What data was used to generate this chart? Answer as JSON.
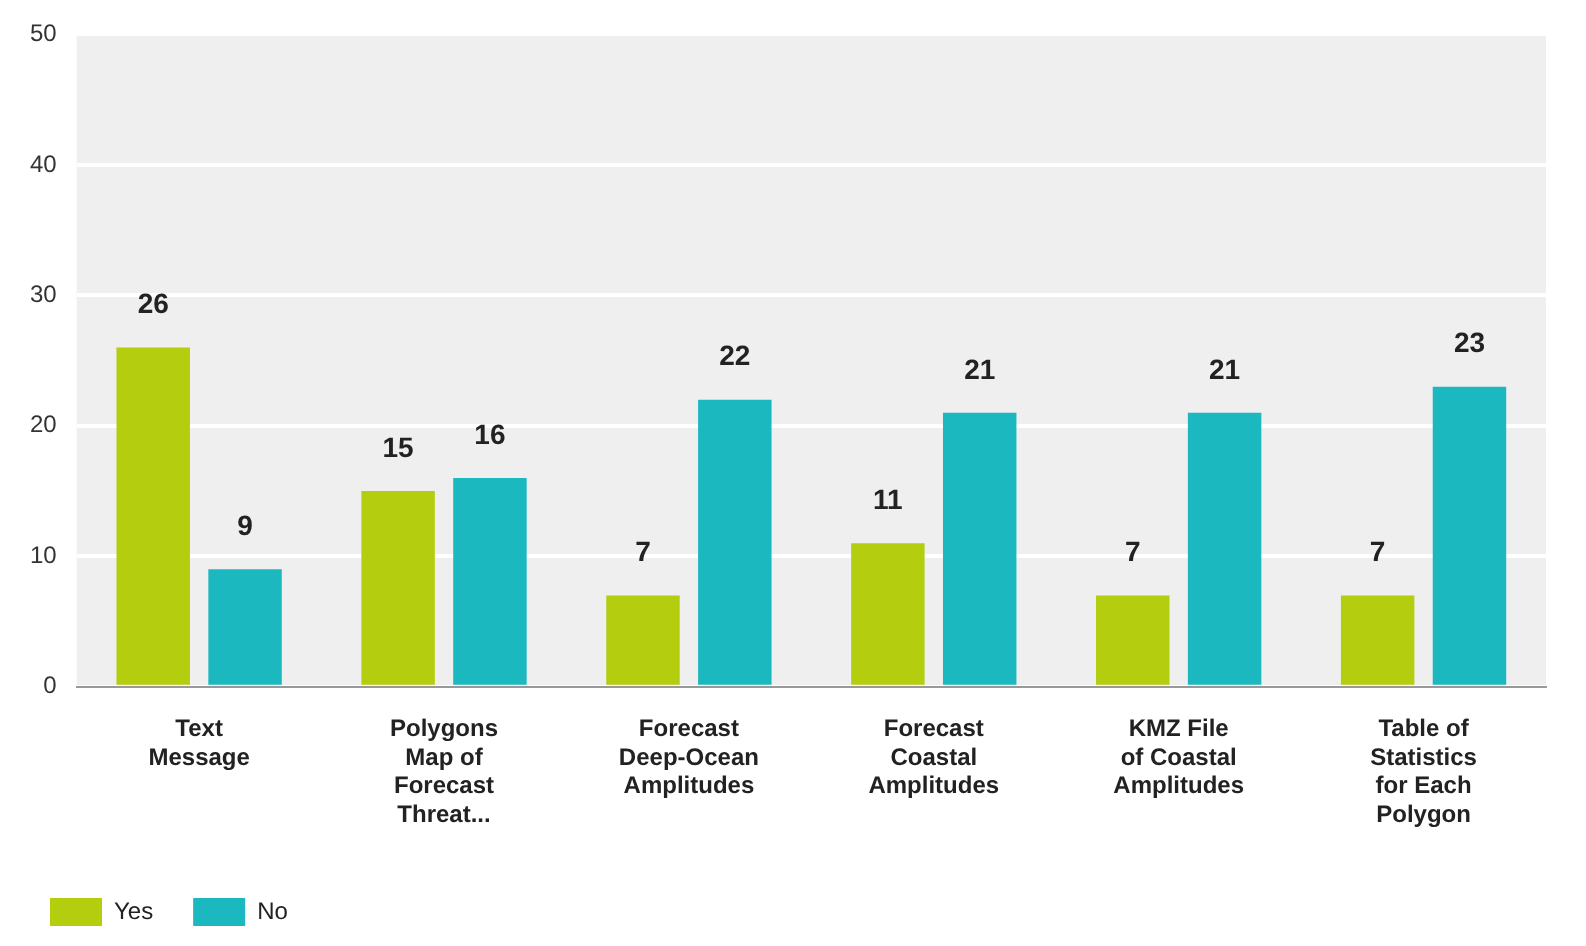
{
  "chart_data": {
    "type": "bar",
    "categories": [
      "Text Message",
      "Polygons Map of Forecast Threat...",
      "Forecast Deep-Ocean Amplitudes",
      "Forecast Coastal Amplitudes",
      "KMZ File of Coastal Amplitudes",
      "Table of Statistics for Each Polygon"
    ],
    "series": [
      {
        "name": "Yes",
        "color": "#b4cd0f",
        "values": [
          26,
          15,
          7,
          11,
          7,
          7
        ]
      },
      {
        "name": "No",
        "color": "#1cb8c0",
        "values": [
          9,
          16,
          22,
          21,
          21,
          23
        ]
      }
    ],
    "ylim": [
      0,
      50
    ],
    "yticks": [
      0,
      10,
      20,
      30,
      40,
      50
    ],
    "grid": "y",
    "legend": "bottom left",
    "data_labels": true
  }
}
